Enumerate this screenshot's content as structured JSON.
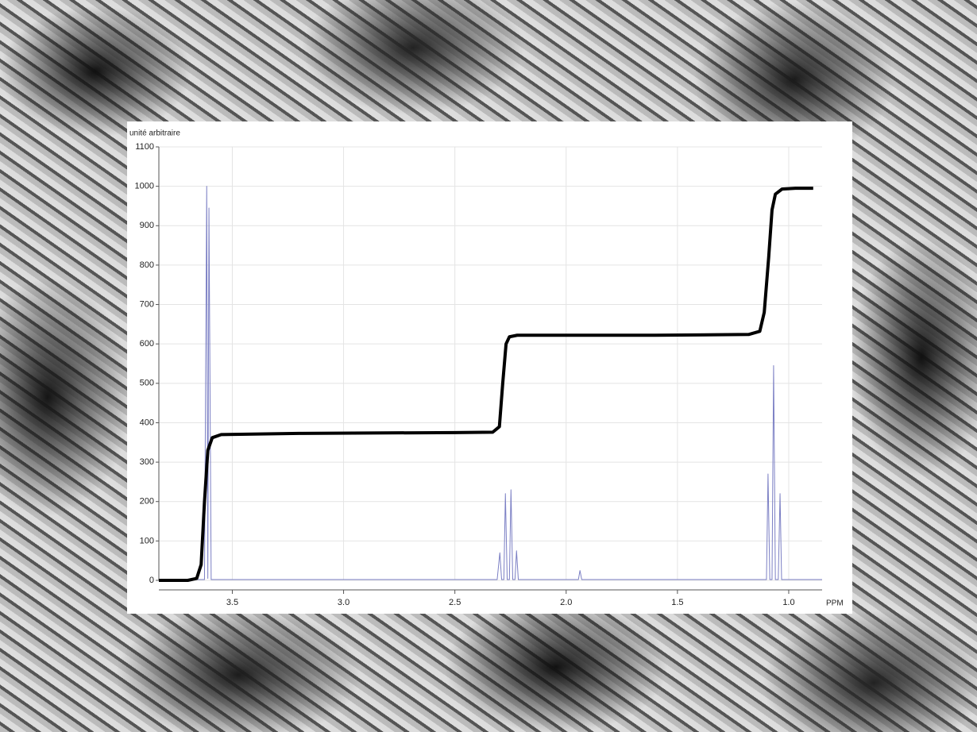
{
  "chart_data": {
    "type": "line",
    "y_label": "unité arbitraire",
    "x_label": "PPM",
    "xlim": [
      3.83,
      0.85
    ],
    "ylim": [
      0,
      1100
    ],
    "xticks": [
      3.5,
      {
        "value": 3,
        "label": "3.0"
      },
      2.5,
      {
        "value": 2,
        "label": "2.0"
      },
      1.5,
      {
        "value": 1,
        "label": "1.0"
      }
    ],
    "yticks": [
      0,
      100,
      200,
      300,
      400,
      500,
      600,
      700,
      800,
      900,
      1000,
      1100
    ],
    "grid": true,
    "series": [
      {
        "color": "#7b7fc4",
        "width": 1,
        "x": [
          3.83,
          3.625,
          3.615,
          3.61,
          3.605,
          3.595,
          2.31,
          2.298,
          2.29,
          2.28,
          2.273,
          2.265,
          2.255,
          2.248,
          2.24,
          2.23,
          2.223,
          2.215,
          1.945,
          1.938,
          1.93,
          1.1,
          1.093,
          1.085,
          1.075,
          1.068,
          1.06,
          1.047,
          1.039,
          1.032,
          0.85
        ],
        "values": [
          2,
          2,
          1000,
          5,
          945,
          2,
          2,
          70,
          2,
          2,
          220,
          2,
          2,
          230,
          2,
          2,
          75,
          2,
          2,
          25,
          2,
          2,
          270,
          2,
          2,
          545,
          2,
          2,
          220,
          2,
          2
        ]
      },
      {
        "color": "#000000",
        "width": 4,
        "x": [
          3.83,
          3.7,
          3.66,
          3.64,
          3.625,
          3.61,
          3.59,
          3.55,
          3.2,
          2.5,
          2.33,
          2.3,
          2.285,
          2.27,
          2.255,
          2.22,
          1.6,
          1.18,
          1.13,
          1.11,
          1.09,
          1.075,
          1.06,
          1.03,
          0.97,
          0.89
        ],
        "values": [
          0,
          0,
          5,
          40,
          200,
          330,
          362,
          370,
          373,
          375,
          376,
          390,
          500,
          600,
          618,
          622,
          622,
          624,
          632,
          680,
          820,
          940,
          980,
          993,
          995,
          995
        ]
      }
    ]
  }
}
